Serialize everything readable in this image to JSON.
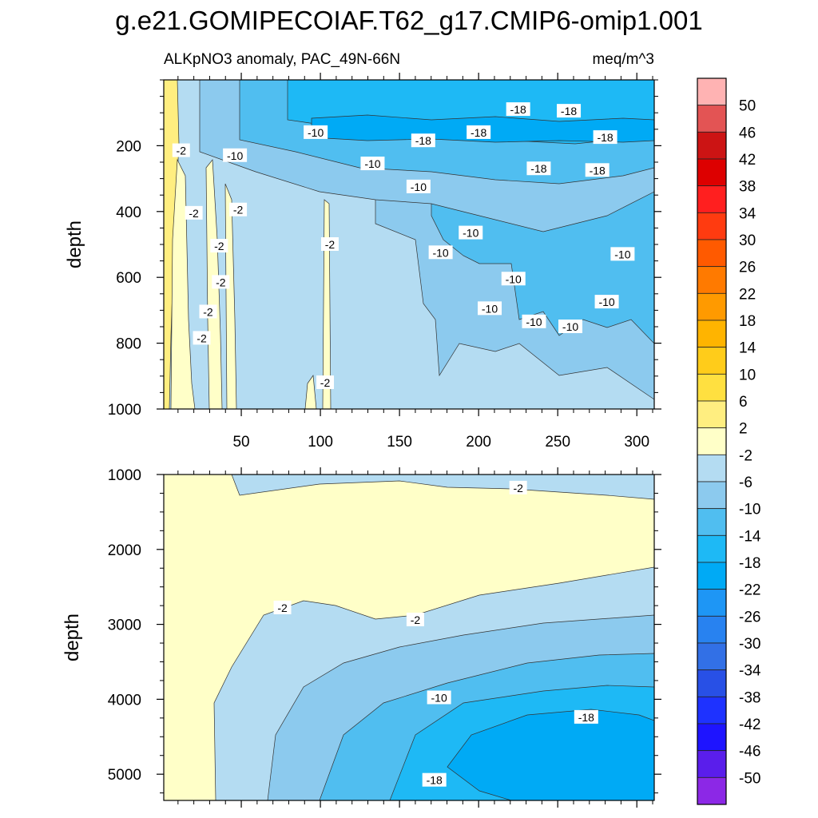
{
  "chart_data": {
    "type": "heatmap",
    "title": "g.e21.GOMIPECOIAF.T62_g17.CMIP6-omip1.001",
    "subtitle_left": "ALKpNO3 anomaly, PAC_49N-66N",
    "subtitle_right": "meq/m^3",
    "ylabel": "depth",
    "x_ticks": [
      50,
      100,
      150,
      200,
      250,
      300
    ],
    "xlim": [
      1,
      311
    ],
    "panels": [
      {
        "name": "upper",
        "ylim": [
          1000,
          0
        ],
        "y_ticks": [
          200,
          400,
          600,
          800,
          1000
        ],
        "x_tick_labels_shown": true,
        "contour_labels": [
          {
            "text": "-2",
            "x": 12,
            "y": 215
          },
          {
            "text": "-10",
            "x": 46,
            "y": 230
          },
          {
            "text": "-10",
            "x": 97,
            "y": 160
          },
          {
            "text": "-10",
            "x": 133,
            "y": 255
          },
          {
            "text": "-10",
            "x": 162,
            "y": 325
          },
          {
            "text": "-18",
            "x": 165,
            "y": 185
          },
          {
            "text": "-18",
            "x": 200,
            "y": 160
          },
          {
            "text": "-18",
            "x": 225,
            "y": 90
          },
          {
            "text": "-18",
            "x": 257,
            "y": 95
          },
          {
            "text": "-18",
            "x": 280,
            "y": 175
          },
          {
            "text": "-18",
            "x": 238,
            "y": 270
          },
          {
            "text": "-18",
            "x": 275,
            "y": 275
          },
          {
            "text": "-2",
            "x": 20,
            "y": 405
          },
          {
            "text": "-2",
            "x": 48,
            "y": 395
          },
          {
            "text": "-2",
            "x": 36,
            "y": 505
          },
          {
            "text": "-2",
            "x": 37,
            "y": 615
          },
          {
            "text": "-2",
            "x": 29,
            "y": 705
          },
          {
            "text": "-2",
            "x": 25,
            "y": 785
          },
          {
            "text": "-2",
            "x": 106,
            "y": 500
          },
          {
            "text": "-2",
            "x": 103,
            "y": 920
          },
          {
            "text": "-10",
            "x": 195,
            "y": 465
          },
          {
            "text": "-10",
            "x": 176,
            "y": 525
          },
          {
            "text": "-10",
            "x": 222,
            "y": 605
          },
          {
            "text": "-10",
            "x": 207,
            "y": 695
          },
          {
            "text": "-10",
            "x": 235,
            "y": 735
          },
          {
            "text": "-10",
            "x": 258,
            "y": 750
          },
          {
            "text": "-10",
            "x": 281,
            "y": 675
          },
          {
            "text": "-10",
            "x": 291,
            "y": 530
          }
        ]
      },
      {
        "name": "lower",
        "ylim": [
          5350,
          1000
        ],
        "y_ticks": [
          1000,
          2000,
          3000,
          4000,
          5000
        ],
        "x_tick_labels_shown": false,
        "contour_labels": [
          {
            "text": "-2",
            "x": 76,
            "y": 2780
          },
          {
            "text": "-2",
            "x": 160,
            "y": 2940
          },
          {
            "text": "-2",
            "x": 225,
            "y": 1180
          },
          {
            "text": "-10",
            "x": 175,
            "y": 3980
          },
          {
            "text": "-18",
            "x": 268,
            "y": 4240
          },
          {
            "text": "-18",
            "x": 172,
            "y": 5080
          }
        ]
      }
    ],
    "colorbar": {
      "labels": [
        "50",
        "46",
        "42",
        "38",
        "34",
        "30",
        "26",
        "22",
        "18",
        "14",
        "10",
        "6",
        "2",
        "-2",
        "-6",
        "-10",
        "-14",
        "-18",
        "-22",
        "-26",
        "-30",
        "-34",
        "-38",
        "-42",
        "-46",
        "-50"
      ],
      "colors": [
        "#FFB3B3",
        "#E35454",
        "#CC1414",
        "#DD0000",
        "#FF1F1F",
        "#FF3B10",
        "#FF5A00",
        "#FF7A00",
        "#FF9A00",
        "#FFB400",
        "#FFCC1A",
        "#FFE040",
        "#FFEE80",
        "#FFFFC8",
        "#B4DCF2",
        "#8CCAEE",
        "#50BEF0",
        "#1EB9F5",
        "#00AAF5",
        "#1E96F5",
        "#2882F0",
        "#3270E6",
        "#2850E6",
        "#1E32FF",
        "#1E14FF",
        "#5A1EEB",
        "#8C28E6"
      ]
    }
  }
}
